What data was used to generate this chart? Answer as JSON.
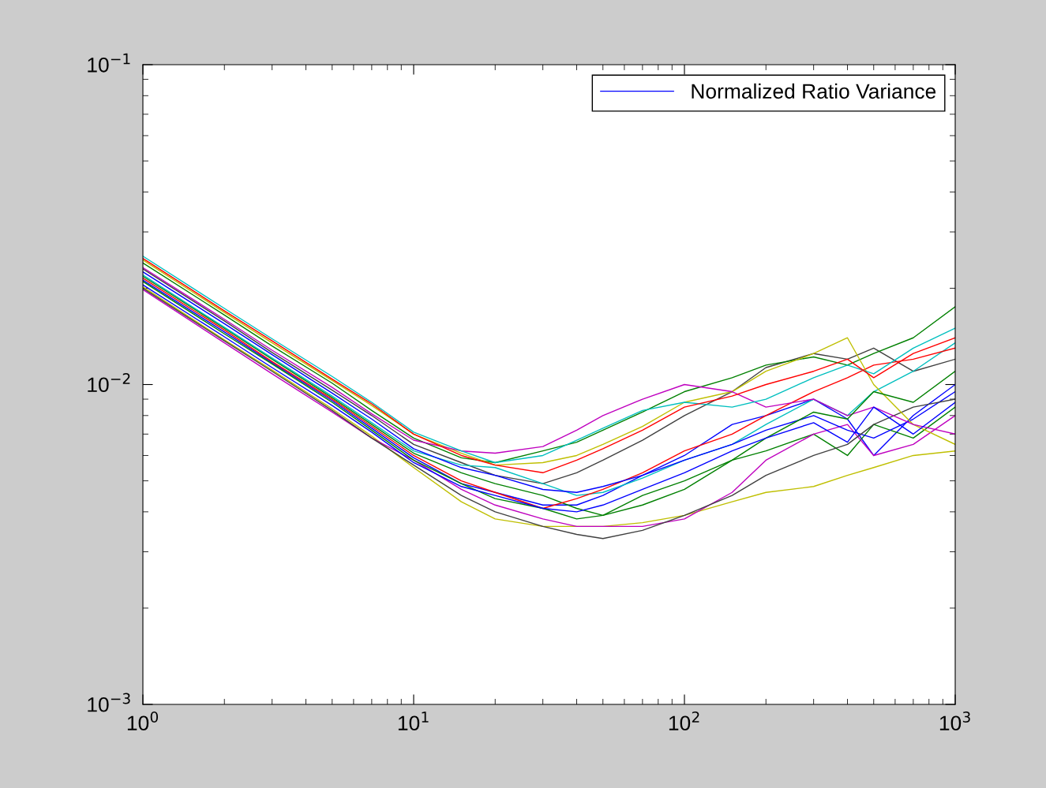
{
  "chart_data": {
    "type": "line",
    "log": "xy",
    "grid": false,
    "legend": "top right",
    "marker": "none",
    "line_style": "solid",
    "x": [
      1,
      2,
      3,
      5,
      7,
      10,
      15,
      20,
      30,
      40,
      50,
      70,
      100,
      150,
      200,
      300,
      400,
      500,
      700,
      1000
    ],
    "xlim": [
      1,
      1000
    ],
    "ylim": [
      0.001,
      0.1
    ],
    "xticks": [
      {
        "value": 1,
        "label": "10$^{0}$"
      },
      {
        "value": 10,
        "label": "10$^{1}$"
      },
      {
        "value": 100,
        "label": "10$^{2}$"
      },
      {
        "value": 1000,
        "label": "10$^{3}$"
      }
    ],
    "yticks": [
      {
        "value": 0.001,
        "label": "10$^{−3}$"
      },
      {
        "value": 0.01,
        "label": "10$^{−2}$"
      },
      {
        "value": 0.1,
        "label": "10$^{−1}$"
      }
    ],
    "series": [
      {
        "name": "Normalized Ratio Variance",
        "color": "#0000ff",
        "values": [
          0.0205,
          0.0141,
          0.0113,
          0.0086,
          0.0071,
          0.0057,
          0.0048,
          0.0045,
          0.0041,
          0.004,
          0.0042,
          0.0047,
          0.0053,
          0.0062,
          0.0068,
          0.0076,
          0.0066,
          0.0085,
          0.007,
          0.0088
        ]
      },
      {
        "color": "#008000",
        "values": [
          0.021,
          0.0144,
          0.0116,
          0.0088,
          0.0072,
          0.0058,
          0.0049,
          0.0044,
          0.0041,
          0.0038,
          0.0039,
          0.0042,
          0.0047,
          0.0058,
          0.0068,
          0.0082,
          0.0078,
          0.0095,
          0.0088,
          0.011
        ]
      },
      {
        "color": "#ff0000",
        "values": [
          0.0248,
          0.017,
          0.0137,
          0.0104,
          0.0087,
          0.007,
          0.006,
          0.0056,
          0.0053,
          0.0058,
          0.0063,
          0.0072,
          0.0085,
          0.0092,
          0.01,
          0.011,
          0.012,
          0.0105,
          0.0125,
          0.014
        ]
      },
      {
        "color": "#00bfbf",
        "values": [
          0.0252,
          0.0173,
          0.0139,
          0.0106,
          0.0088,
          0.0071,
          0.0062,
          0.0057,
          0.006,
          0.0067,
          0.0073,
          0.0083,
          0.0088,
          0.0085,
          0.009,
          0.0105,
          0.0115,
          0.0108,
          0.013,
          0.015
        ]
      },
      {
        "color": "#bf00bf",
        "values": [
          0.0232,
          0.016,
          0.0128,
          0.0098,
          0.0081,
          0.0067,
          0.0062,
          0.0061,
          0.0064,
          0.0072,
          0.008,
          0.009,
          0.01,
          0.0095,
          0.0085,
          0.009,
          0.008,
          0.0085,
          0.0075,
          0.007
        ]
      },
      {
        "color": "#bfbf00",
        "values": [
          0.0245,
          0.0168,
          0.0135,
          0.0103,
          0.0086,
          0.007,
          0.0061,
          0.0056,
          0.0057,
          0.006,
          0.0065,
          0.0074,
          0.0088,
          0.0095,
          0.011,
          0.0125,
          0.014,
          0.01,
          0.0075,
          0.0065
        ]
      },
      {
        "color": "#404040",
        "values": [
          0.02,
          0.0137,
          0.011,
          0.0083,
          0.0068,
          0.0056,
          0.0045,
          0.004,
          0.0036,
          0.0034,
          0.0033,
          0.0035,
          0.0039,
          0.0045,
          0.0052,
          0.006,
          0.0065,
          0.0075,
          0.0085,
          0.009
        ]
      },
      {
        "color": "#0000ff",
        "values": [
          0.0225,
          0.0155,
          0.0124,
          0.0094,
          0.0078,
          0.0063,
          0.0055,
          0.0052,
          0.0047,
          0.0046,
          0.0048,
          0.0052,
          0.0058,
          0.0065,
          0.0072,
          0.008,
          0.0072,
          0.0068,
          0.0078,
          0.0095
        ]
      },
      {
        "color": "#008000",
        "values": [
          0.024,
          0.0165,
          0.0132,
          0.0101,
          0.0083,
          0.0068,
          0.0059,
          0.0057,
          0.0062,
          0.0066,
          0.0072,
          0.0082,
          0.0095,
          0.0105,
          0.0115,
          0.0122,
          0.0115,
          0.0125,
          0.014,
          0.0175
        ]
      },
      {
        "color": "#ff0000",
        "values": [
          0.0215,
          0.0148,
          0.0118,
          0.009,
          0.0074,
          0.006,
          0.005,
          0.0046,
          0.0041,
          0.0044,
          0.0047,
          0.0053,
          0.0062,
          0.007,
          0.008,
          0.0095,
          0.0105,
          0.0115,
          0.012,
          0.013
        ]
      },
      {
        "color": "#00bfbf",
        "values": [
          0.022,
          0.0151,
          0.0121,
          0.0092,
          0.0076,
          0.0062,
          0.0056,
          0.0055,
          0.0049,
          0.0045,
          0.0046,
          0.0051,
          0.0058,
          0.0065,
          0.0075,
          0.009,
          0.008,
          0.0095,
          0.011,
          0.0135
        ]
      },
      {
        "color": "#bf00bf",
        "values": [
          0.0198,
          0.0135,
          0.0108,
          0.0082,
          0.0068,
          0.0058,
          0.0047,
          0.0042,
          0.0038,
          0.0036,
          0.0036,
          0.0036,
          0.0038,
          0.0046,
          0.0058,
          0.007,
          0.0075,
          0.006,
          0.0065,
          0.008
        ]
      },
      {
        "color": "#bfbf00",
        "values": [
          0.0202,
          0.0138,
          0.0111,
          0.0084,
          0.0069,
          0.0055,
          0.0043,
          0.0038,
          0.0036,
          0.0036,
          0.0036,
          0.0037,
          0.0039,
          0.0043,
          0.0046,
          0.0048,
          0.0052,
          0.0055,
          0.006,
          0.0062
        ]
      },
      {
        "color": "#008000",
        "values": [
          0.0218,
          0.015,
          0.012,
          0.0091,
          0.0075,
          0.0061,
          0.0053,
          0.0049,
          0.0045,
          0.0041,
          0.0039,
          0.0045,
          0.005,
          0.0058,
          0.0062,
          0.007,
          0.006,
          0.0075,
          0.0068,
          0.0085
        ]
      },
      {
        "color": "#0000ff",
        "values": [
          0.0212,
          0.0146,
          0.0117,
          0.0089,
          0.0073,
          0.0059,
          0.0049,
          0.0046,
          0.0042,
          0.0042,
          0.0045,
          0.0052,
          0.006,
          0.0075,
          0.008,
          0.009,
          0.0078,
          0.006,
          0.008,
          0.01
        ]
      },
      {
        "color": "#404040",
        "values": [
          0.023,
          0.0158,
          0.0126,
          0.0096,
          0.008,
          0.0065,
          0.0057,
          0.0052,
          0.0049,
          0.0053,
          0.0058,
          0.0067,
          0.008,
          0.0095,
          0.0113,
          0.0125,
          0.012,
          0.013,
          0.011,
          0.012
        ]
      }
    ]
  }
}
